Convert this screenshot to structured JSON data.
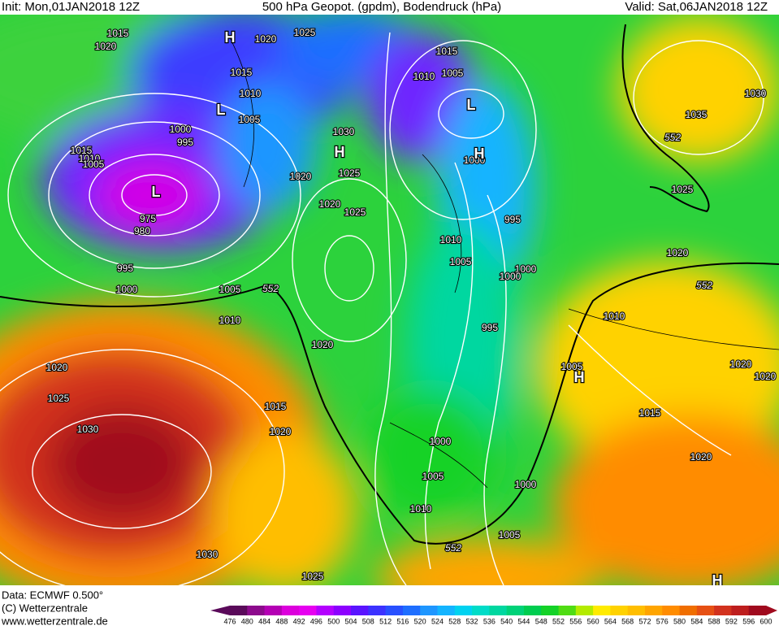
{
  "header": {
    "init": "Init: Mon,01JAN2018 12Z",
    "title": "500 hPa Geopot. (gpdm), Bodendruck (hPa)",
    "valid": "Valid: Sat,06JAN2018 12Z"
  },
  "footer": {
    "data": "Data: ECMWF  0.500°",
    "copyright": "(C) Wetterzentrale",
    "url": "www.wetterzentrale.de"
  },
  "pressure_labels": [
    1015,
    1020,
    1020,
    1025,
    1015,
    1010,
    1005,
    1000,
    995,
    1015,
    1010,
    1005,
    975,
    980,
    995,
    1000,
    1005,
    1010,
    1020,
    1030,
    1025,
    1020,
    1025,
    1015,
    1010,
    1005,
    1000,
    995,
    1010,
    1005,
    1000,
    1000,
    995,
    1020,
    1020,
    1025,
    1030,
    1015,
    1020,
    1030,
    1025,
    1000,
    1005,
    1010,
    1000,
    1005,
    1005,
    1010,
    1015,
    1020,
    1020,
    1020,
    1020,
    1025,
    1035,
    1030
  ],
  "geopotential_labels": [
    552,
    552,
    552,
    552
  ],
  "centers": [
    "H",
    "L",
    "L",
    "H",
    "L",
    "H",
    "H",
    "H"
  ],
  "colorbar": {
    "labels": [
      476,
      480,
      484,
      488,
      492,
      496,
      500,
      504,
      508,
      512,
      516,
      520,
      524,
      528,
      532,
      536,
      540,
      544,
      548,
      552,
      556,
      560,
      564,
      568,
      572,
      576,
      580,
      584,
      588,
      592,
      596,
      600
    ],
    "colors": [
      "#5a0a5a",
      "#8c0a8c",
      "#b400b4",
      "#dc00dc",
      "#e600f0",
      "#b400ff",
      "#8c00ff",
      "#5a14ff",
      "#3c32ff",
      "#2850ff",
      "#1e6eff",
      "#1e96ff",
      "#14b4ff",
      "#00d2f0",
      "#00dcc8",
      "#00d7a0",
      "#00d278",
      "#00cd50",
      "#14d228",
      "#50dc14",
      "#b4eb00",
      "#ffeb00",
      "#ffd200",
      "#ffbe00",
      "#ffa500",
      "#ff8c00",
      "#f06e00",
      "#e65014",
      "#d2321e",
      "#be1e1e",
      "#a00a1e"
    ]
  }
}
